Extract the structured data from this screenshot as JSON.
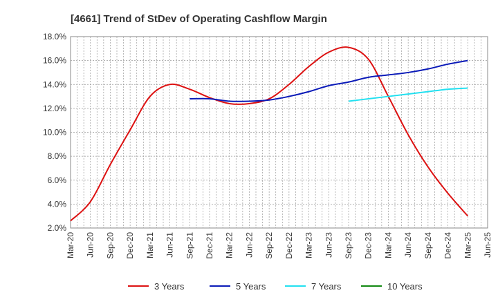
{
  "chart_data": {
    "type": "line",
    "title": "[4661]  Trend of StDev of Operating Cashflow Margin",
    "xlabel": "",
    "ylabel": "",
    "x_ticks": [
      "Mar-20",
      "Jun-20",
      "Sep-20",
      "Dec-20",
      "Mar-21",
      "Jun-21",
      "Sep-21",
      "Dec-21",
      "Mar-22",
      "Jun-22",
      "Sep-22",
      "Dec-22",
      "Mar-23",
      "Jun-23",
      "Sep-23",
      "Dec-23",
      "Mar-24",
      "Jun-24",
      "Sep-24",
      "Dec-24",
      "Mar-25",
      "Jun-25"
    ],
    "y_ticks": [
      "2.0%",
      "4.0%",
      "6.0%",
      "8.0%",
      "10.0%",
      "12.0%",
      "14.0%",
      "16.0%",
      "18.0%"
    ],
    "ylim": [
      2,
      18
    ],
    "y_unit": "%",
    "grid": true,
    "legend_position": "bottom",
    "series": [
      {
        "name": "3 Years",
        "color": "#dd1111",
        "points": [
          [
            "Mar-20",
            2.6
          ],
          [
            "Jun-20",
            4.2
          ],
          [
            "Sep-20",
            7.3
          ],
          [
            "Dec-20",
            10.2
          ],
          [
            "Mar-21",
            13.0
          ],
          [
            "Jun-21",
            14.0
          ],
          [
            "Sep-21",
            13.6
          ],
          [
            "Dec-21",
            12.9
          ],
          [
            "Mar-22",
            12.4
          ],
          [
            "Jun-22",
            12.4
          ],
          [
            "Sep-22",
            12.8
          ],
          [
            "Dec-22",
            14.0
          ],
          [
            "Mar-23",
            15.5
          ],
          [
            "Jun-23",
            16.7
          ],
          [
            "Sep-23",
            17.1
          ],
          [
            "Dec-23",
            16.1
          ],
          [
            "Mar-24",
            13.0
          ],
          [
            "Jun-24",
            9.8
          ],
          [
            "Sep-24",
            7.1
          ],
          [
            "Dec-24",
            4.9
          ],
          [
            "Mar-25",
            3.0
          ]
        ]
      },
      {
        "name": "5 Years",
        "color": "#0a1ab8",
        "points": [
          [
            "Sep-21",
            12.8
          ],
          [
            "Dec-21",
            12.8
          ],
          [
            "Mar-22",
            12.6
          ],
          [
            "Jun-22",
            12.6
          ],
          [
            "Sep-22",
            12.7
          ],
          [
            "Dec-22",
            13.0
          ],
          [
            "Mar-23",
            13.4
          ],
          [
            "Jun-23",
            13.9
          ],
          [
            "Sep-23",
            14.2
          ],
          [
            "Dec-23",
            14.6
          ],
          [
            "Mar-24",
            14.8
          ],
          [
            "Jun-24",
            15.0
          ],
          [
            "Sep-24",
            15.3
          ],
          [
            "Dec-24",
            15.7
          ],
          [
            "Mar-25",
            16.0
          ]
        ]
      },
      {
        "name": "7 Years",
        "color": "#22e0f0",
        "points": [
          [
            "Sep-23",
            12.6
          ],
          [
            "Dec-23",
            12.8
          ],
          [
            "Mar-24",
            13.0
          ],
          [
            "Jun-24",
            13.2
          ],
          [
            "Sep-24",
            13.4
          ],
          [
            "Dec-24",
            13.6
          ],
          [
            "Mar-25",
            13.7
          ]
        ]
      },
      {
        "name": "10 Years",
        "color": "#118811",
        "points": []
      }
    ]
  }
}
